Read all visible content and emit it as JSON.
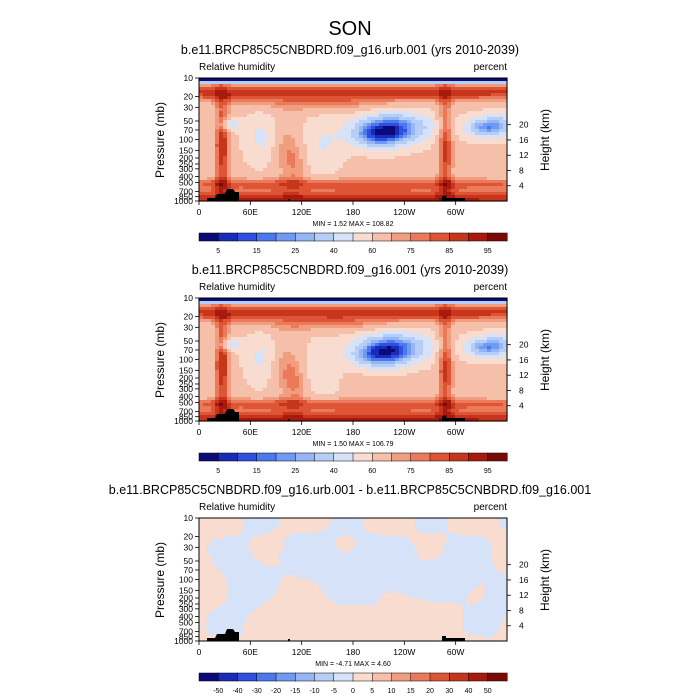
{
  "title": "SON",
  "panels": [
    {
      "title": "b.e11.BRCP85C5CNBDRD.f09_g16.urb.001 (yrs 2010-2039)",
      "left_label": "Relative humidity",
      "right_label": "percent",
      "minmax": "MIN =    1.52  MAX =  108.82",
      "ylabel_left": "Pressure (mb)",
      "ylabel_right": "Height (km)"
    },
    {
      "title": "b.e11.BRCP85C5CNBDRD.f09_g16.001 (yrs 2010-2039)",
      "left_label": "Relative humidity",
      "right_label": "percent",
      "minmax": "MIN =    1.50  MAX =  106.79",
      "ylabel_left": "Pressure (mb)",
      "ylabel_right": "Height (km)"
    },
    {
      "title": "b.e11.BRCP85C5CNBDRD.f09_g16.urb.001 - b.e11.BRCP85C5CNBDRD.f09_g16.001",
      "left_label": "Relative humidity",
      "right_label": "percent",
      "minmax": "MIN =   -4.71  MAX =   4.60",
      "ylabel_left": "Pressure (mb)",
      "ylabel_right": "Height (km)"
    }
  ],
  "chart_data": [
    {
      "type": "heatmap",
      "title": "b.e11.BRCP85C5CNBDRD.f09_g16.urb.001 (yrs 2010-2039)",
      "xlabel": "",
      "ylabel": "Pressure (mb)",
      "y2label": "Height (km)",
      "x_ticks": [
        "0",
        "60E",
        "120E",
        "180",
        "120W",
        "60W"
      ],
      "y_ticks": [
        "1000",
        "850",
        "700",
        "500",
        "400",
        "300",
        "250",
        "200",
        "150",
        "100",
        "70",
        "50",
        "30",
        "20",
        "10"
      ],
      "y2_ticks": [
        "4",
        "8",
        "12",
        "16",
        "20"
      ],
      "colorbar_ticks": [
        "5",
        "15",
        "25",
        "40",
        "60",
        "75",
        "85",
        "95"
      ],
      "colorbar_levels": [
        5,
        10,
        15,
        20,
        25,
        30,
        40,
        50,
        60,
        70,
        75,
        80,
        85,
        90,
        95
      ],
      "colors": [
        "#0a0a78",
        "#1a2bb8",
        "#2f4fe0",
        "#4c78ee",
        "#6f99f2",
        "#94b6f5",
        "#b6cdf5",
        "#d5e2f7",
        "#f8dccf",
        "#f5bfa9",
        "#f19e80",
        "#ea7a59",
        "#de5536",
        "#c8351d",
        "#a81a0d",
        "#7a0a05"
      ],
      "min": 1.52,
      "max": 108.82
    },
    {
      "type": "heatmap",
      "title": "b.e11.BRCP85C5CNBDRD.f09_g16.001 (yrs 2010-2039)",
      "xlabel": "",
      "ylabel": "Pressure (mb)",
      "y2label": "Height (km)",
      "x_ticks": [
        "0",
        "60E",
        "120E",
        "180",
        "120W",
        "60W"
      ],
      "y_ticks": [
        "1000",
        "850",
        "700",
        "500",
        "400",
        "300",
        "250",
        "200",
        "150",
        "100",
        "70",
        "50",
        "30",
        "20",
        "10"
      ],
      "y2_ticks": [
        "4",
        "8",
        "12",
        "16",
        "20"
      ],
      "colorbar_ticks": [
        "5",
        "15",
        "25",
        "40",
        "60",
        "75",
        "85",
        "95"
      ],
      "colorbar_levels": [
        5,
        10,
        15,
        20,
        25,
        30,
        40,
        50,
        60,
        70,
        75,
        80,
        85,
        90,
        95
      ],
      "colors": [
        "#0a0a78",
        "#1a2bb8",
        "#2f4fe0",
        "#4c78ee",
        "#6f99f2",
        "#94b6f5",
        "#b6cdf5",
        "#d5e2f7",
        "#f8dccf",
        "#f5bfa9",
        "#f19e80",
        "#ea7a59",
        "#de5536",
        "#c8351d",
        "#a81a0d",
        "#7a0a05"
      ],
      "min": 1.5,
      "max": 106.79
    },
    {
      "type": "heatmap",
      "title": "b.e11.BRCP85C5CNBDRD.f09_g16.urb.001 - b.e11.BRCP85C5CNBDRD.f09_g16.001",
      "xlabel": "",
      "ylabel": "Pressure (mb)",
      "y2label": "Height (km)",
      "x_ticks": [
        "0",
        "60E",
        "120E",
        "180",
        "120W",
        "60W"
      ],
      "y_ticks": [
        "1000",
        "850",
        "700",
        "500",
        "400",
        "300",
        "250",
        "200",
        "150",
        "100",
        "70",
        "50",
        "30",
        "20",
        "10"
      ],
      "y2_ticks": [
        "4",
        "8",
        "12",
        "16",
        "20"
      ],
      "colorbar_ticks": [
        "-50",
        "-40",
        "-30",
        "-20",
        "-15",
        "-10",
        "-5",
        "0",
        "5",
        "10",
        "15",
        "20",
        "30",
        "40",
        "50"
      ],
      "colorbar_levels": [
        -50,
        -40,
        -30,
        -20,
        -15,
        -10,
        -5,
        0,
        5,
        10,
        15,
        20,
        30,
        40,
        50
      ],
      "colors": [
        "#0a0a78",
        "#1a2bb8",
        "#2f4fe0",
        "#4c78ee",
        "#6f99f2",
        "#94b6f5",
        "#b6cdf5",
        "#d5e2f7",
        "#f8dccf",
        "#f5bfa9",
        "#f19e80",
        "#ea7a59",
        "#de5536",
        "#c8351d",
        "#a81a0d",
        "#7a0a05"
      ],
      "min": -4.71,
      "max": 4.6
    }
  ]
}
